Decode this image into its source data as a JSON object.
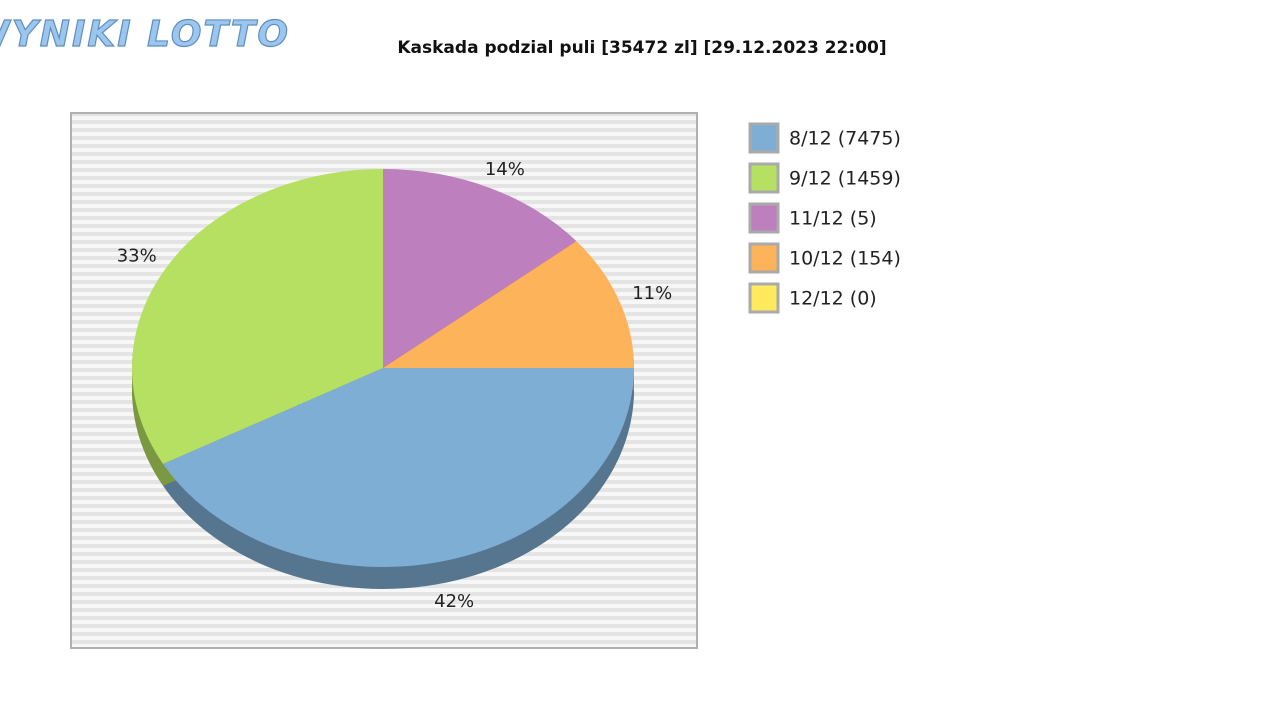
{
  "logo": "WYNIKI LOTTO",
  "chart_data": {
    "type": "pie",
    "title": "Kaskada podzial puli [35472 zl] [29.12.2023 22:00]",
    "categories": [
      "8/12 (7475)",
      "9/12 (1459)",
      "11/12 (5)",
      "10/12 (154)",
      "12/12 (0)"
    ],
    "values": [
      42,
      33,
      14,
      11,
      0
    ],
    "colors": [
      "#7eaed4",
      "#b5e061",
      "#bd7fbd",
      "#fdb35a",
      "#ffe95c"
    ],
    "legend": "right"
  }
}
